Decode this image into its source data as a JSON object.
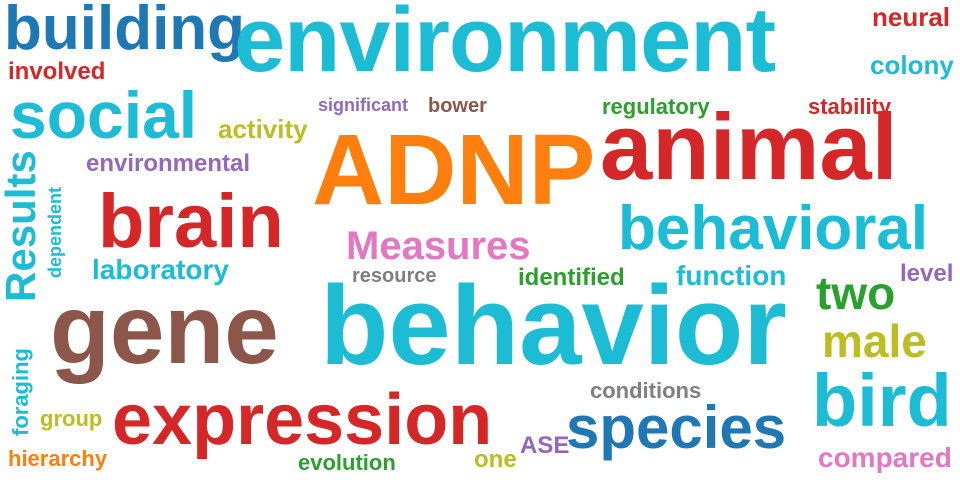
{
  "palette": {
    "cyan": "#1bbcd4",
    "blue": "#1f77b4",
    "red": "#d62728",
    "orange": "#ff7f0e",
    "brown": "#8c564b",
    "pink": "#e377c2",
    "green": "#2ca02c",
    "purple": "#9467bd",
    "olive": "#bcbd22",
    "gray": "#7f7f7f"
  },
  "words": {
    "building": "building",
    "environment": "environment",
    "neural": "neural",
    "colony": "colony",
    "involved": "involved",
    "social": "social",
    "significant": "significant",
    "bower": "bower",
    "regulatory": "regulatory",
    "stability": "stability",
    "activity": "activity",
    "adnp": "ADNP",
    "animal": "animal",
    "environmental": "environmental",
    "results": "Results",
    "dependent": "dependent",
    "brain": "brain",
    "behavioral": "behavioral",
    "measures": "Measures",
    "laboratory": "laboratory",
    "resource": "resource",
    "identified": "identified",
    "function": "function",
    "level": "level",
    "two": "two",
    "gene": "gene",
    "behavior": "behavior",
    "male": "male",
    "foraging": "foraging",
    "conditions": "conditions",
    "bird": "bird",
    "group": "group",
    "expression": "expression",
    "species": "species",
    "ase": "ASE",
    "hierarchy": "hierarchy",
    "evolution": "evolution",
    "one": "one",
    "compared": "compared"
  }
}
